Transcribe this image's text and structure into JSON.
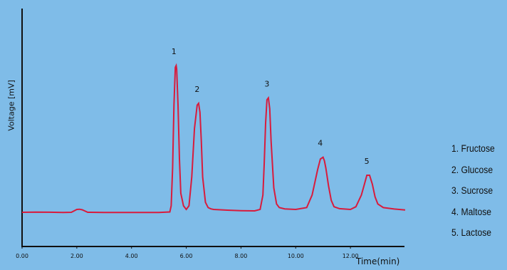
{
  "chart_data": {
    "type": "line",
    "ylabel": "Voltage [mV]",
    "xlabel": "Time(min)",
    "xlim": [
      0,
      14
    ],
    "ylim": [
      0,
      100
    ],
    "x_ticks": [
      "0.00",
      "2.00",
      "4.00",
      "6.00",
      "8.00",
      "10.00",
      "12.00"
    ],
    "x_tick_values": [
      0,
      2,
      4,
      6,
      8,
      10,
      12
    ],
    "series": [
      {
        "x": [
          0.0,
          0.5,
          1.0,
          1.5,
          1.8,
          2.0,
          2.1,
          2.2,
          2.4,
          3.0,
          4.0,
          5.0,
          5.4,
          5.45,
          5.5,
          5.55,
          5.6,
          5.63,
          5.65,
          5.7,
          5.75,
          5.8,
          5.9,
          6.0,
          6.1,
          6.2,
          6.3,
          6.4,
          6.45,
          6.5,
          6.55,
          6.6,
          6.7,
          6.8,
          6.9,
          7.0,
          7.5,
          8.0,
          8.5,
          8.7,
          8.8,
          8.85,
          8.9,
          8.95,
          9.0,
          9.05,
          9.1,
          9.2,
          9.3,
          9.4,
          9.6,
          10.0,
          10.4,
          10.6,
          10.8,
          10.9,
          11.0,
          11.05,
          11.1,
          11.2,
          11.3,
          11.4,
          11.6,
          12.0,
          12.2,
          12.4,
          12.5,
          12.6,
          12.7,
          12.8,
          12.9,
          13.0,
          13.2,
          13.6,
          14.0
        ],
        "y": [
          0.4,
          0.5,
          0.45,
          0.3,
          0.4,
          2.0,
          2.1,
          1.8,
          0.4,
          0.3,
          0.3,
          0.3,
          0.6,
          4.0,
          25.0,
          60.0,
          81.0,
          82.0,
          80.0,
          60.0,
          30.0,
          11.0,
          4.0,
          2.0,
          4.0,
          20.0,
          47.0,
          60.0,
          61.0,
          56.0,
          40.0,
          20.0,
          6.0,
          3.0,
          2.3,
          2.0,
          1.6,
          1.3,
          1.2,
          2.0,
          10.0,
          28.0,
          50.0,
          63.0,
          64.0,
          58.0,
          40.0,
          14.0,
          5.0,
          3.0,
          2.3,
          2.0,
          3.0,
          10.0,
          24.0,
          30.0,
          31.0,
          29.0,
          25.0,
          15.0,
          7.0,
          3.5,
          2.4,
          2.0,
          3.5,
          10.0,
          15.5,
          21.0,
          21.0,
          16.0,
          9.0,
          5.0,
          3.0,
          2.2,
          1.7
        ]
      }
    ],
    "peak_labels": [
      {
        "text": "1",
        "x": 5.6,
        "y": 82
      },
      {
        "text": "2",
        "x": 6.45,
        "y": 61
      },
      {
        "text": "3",
        "x": 9.0,
        "y": 64
      },
      {
        "text": "4",
        "x": 10.95,
        "y": 31
      },
      {
        "text": "5",
        "x": 12.65,
        "y": 21
      }
    ],
    "legend": [
      "1. Fructose",
      "2. Glucose",
      "3. Sucrose",
      "4. Maltose",
      "5. Lactose"
    ],
    "colors": {
      "line": "#d81b3c",
      "axis": "#111111",
      "background": "#7fbce8"
    },
    "grid": false,
    "legend_placement": "right"
  }
}
